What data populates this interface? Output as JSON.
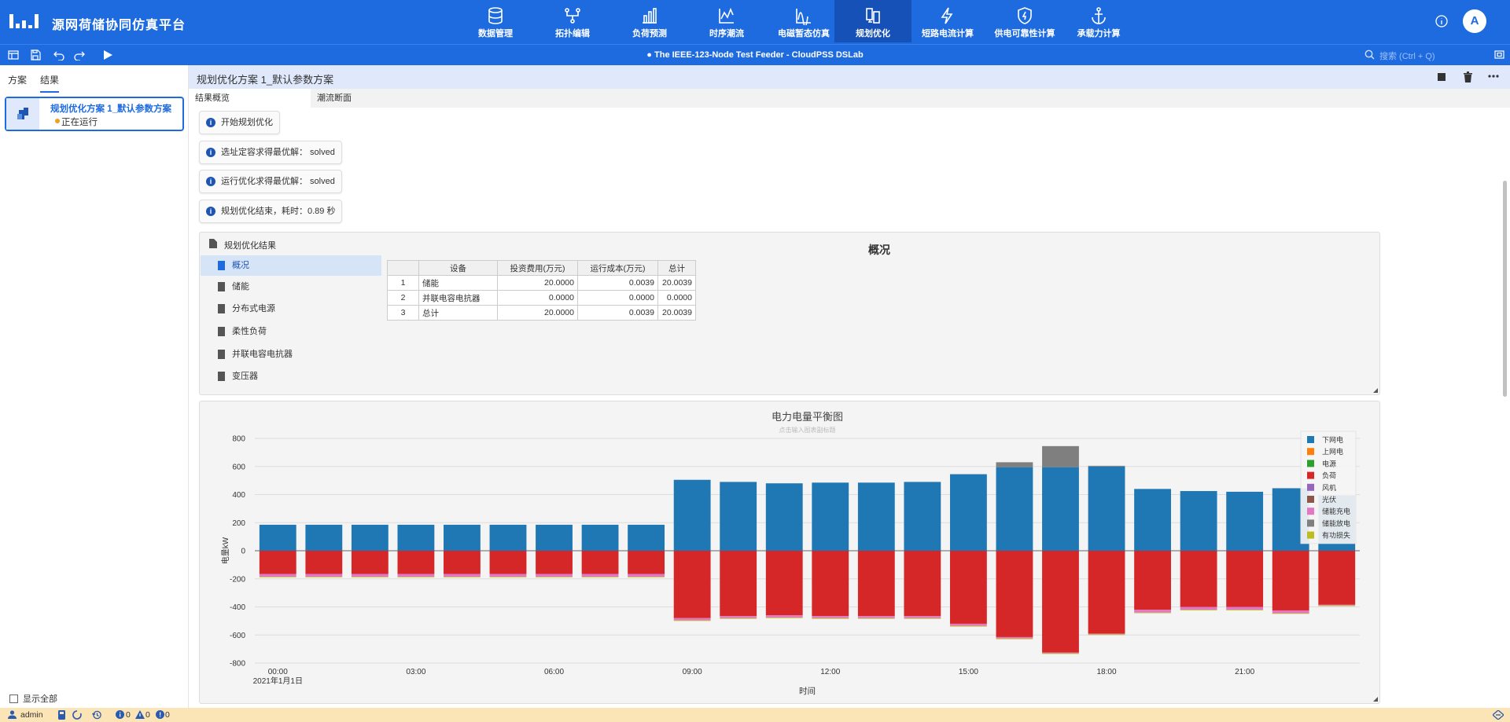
{
  "app": {
    "title": "源网荷储协同仿真平台",
    "avatar": "A"
  },
  "nav": [
    {
      "label": "数据管理",
      "icon": "database-icon"
    },
    {
      "label": "拓扑编辑",
      "icon": "topology-icon"
    },
    {
      "label": "负荷预测",
      "icon": "bar-chart-icon"
    },
    {
      "label": "时序潮流",
      "icon": "line-chart-icon"
    },
    {
      "label": "电磁暂态仿真",
      "icon": "waveform-icon"
    },
    {
      "label": "规划优化",
      "icon": "planning-icon",
      "active": true
    },
    {
      "label": "短路电流计算",
      "icon": "lightning-icon"
    },
    {
      "label": "供电可靠性计算",
      "icon": "shield-icon"
    },
    {
      "label": "承载力计算",
      "icon": "anchor-icon"
    }
  ],
  "toolbar": {
    "doc_title": "The IEEE-123-Node Test Feeder - CloudPSS DSLab",
    "search_placeholder": "搜索 (Ctrl + Q)"
  },
  "left": {
    "tabs": [
      "方案",
      "结果"
    ],
    "plan": {
      "name": "规划优化方案 1_默认参数方案",
      "status": "正在运行"
    },
    "show_all": "显示全部"
  },
  "main": {
    "title": "规划优化方案 1_默认参数方案",
    "tabs": [
      "结果概览",
      "潮流断面"
    ],
    "messages": [
      "开始规划优化",
      "选址定容求得最优解：  solved",
      "运行优化求得最优解：  solved",
      "规划优化结束，耗时：0.89 秒"
    ],
    "result_title": "规划优化结果",
    "result_items": [
      "概况",
      "储能",
      "分布式电源",
      "柔性负荷",
      "并联电容电抗器",
      "变压器"
    ],
    "overview_title": "概况",
    "table": {
      "headers": [
        "",
        "设备",
        "投资费用(万元)",
        "运行成本(万元)",
        "总计"
      ],
      "rows": [
        [
          "1",
          "储能",
          "20.0000",
          "0.0039",
          "20.0039"
        ],
        [
          "2",
          "并联电容电抗器",
          "0.0000",
          "0.0000",
          "0.0000"
        ],
        [
          "3",
          "总计",
          "20.0000",
          "0.0039",
          "20.0039"
        ]
      ]
    }
  },
  "status": {
    "user": "admin",
    "info": "0",
    "warn": "0",
    "err": "0"
  },
  "chart_data": {
    "type": "bar",
    "title": "电力电量平衡图",
    "subtitle": "点击输入图表副标题",
    "xlabel": "时间",
    "ylabel": "电量kW",
    "ylim": [
      -800,
      800
    ],
    "yticks": [
      800,
      600,
      400,
      200,
      0,
      -200,
      -400,
      -600,
      -800
    ],
    "xtick_labels": [
      "00:00",
      "03:00",
      "06:00",
      "09:00",
      "12:00",
      "15:00",
      "18:00",
      "21:00"
    ],
    "xtick_sublabel": "2021年1月1日",
    "grid": true,
    "legend_position": "top-right",
    "x": [
      "00:00",
      "01:00",
      "02:00",
      "03:00",
      "04:00",
      "05:00",
      "06:00",
      "07:00",
      "08:00",
      "09:00",
      "10:00",
      "11:00",
      "12:00",
      "13:00",
      "14:00",
      "15:00",
      "16:00",
      "17:00",
      "18:00",
      "19:00",
      "20:00",
      "21:00",
      "22:00",
      "23:00"
    ],
    "series": [
      {
        "name": "下网电",
        "color": "#1f77b4",
        "values": [
          185,
          185,
          185,
          185,
          185,
          185,
          185,
          185,
          185,
          505,
          490,
          480,
          485,
          485,
          490,
          545,
          595,
          595,
          600,
          440,
          425,
          420,
          445,
          395
        ]
      },
      {
        "name": "上网电",
        "color": "#ff7f0e",
        "values": [
          0,
          0,
          0,
          0,
          0,
          0,
          0,
          0,
          0,
          0,
          0,
          0,
          0,
          0,
          0,
          0,
          0,
          0,
          0,
          0,
          0,
          0,
          0,
          0
        ]
      },
      {
        "name": "电源",
        "color": "#2ca02c",
        "values": [
          0,
          0,
          0,
          0,
          0,
          0,
          0,
          0,
          0,
          0,
          0,
          0,
          0,
          0,
          0,
          0,
          0,
          0,
          0,
          0,
          0,
          0,
          0,
          0
        ]
      },
      {
        "name": "负荷",
        "color": "#d62728",
        "values": [
          -165,
          -165,
          -165,
          -165,
          -165,
          -165,
          -165,
          -165,
          -165,
          -480,
          -465,
          -460,
          -465,
          -465,
          -465,
          -520,
          -615,
          -725,
          -590,
          -420,
          -400,
          -400,
          -425,
          -385
        ]
      },
      {
        "name": "风机",
        "color": "#9467bd",
        "values": [
          0,
          0,
          0,
          0,
          0,
          0,
          0,
          0,
          0,
          0,
          0,
          0,
          0,
          0,
          0,
          0,
          0,
          0,
          0,
          0,
          0,
          0,
          0,
          0
        ]
      },
      {
        "name": "光伏",
        "color": "#8c564b",
        "values": [
          0,
          0,
          0,
          0,
          0,
          0,
          0,
          0,
          0,
          0,
          0,
          0,
          0,
          0,
          0,
          0,
          0,
          0,
          0,
          0,
          0,
          0,
          0,
          0
        ]
      },
      {
        "name": "储能充电",
        "color": "#e377c2",
        "values": [
          -20,
          -20,
          -20,
          -20,
          -20,
          -20,
          -20,
          -20,
          -20,
          -15,
          -15,
          -15,
          -15,
          -15,
          -15,
          -15,
          -10,
          -5,
          -5,
          -20,
          -20,
          -20,
          -20,
          -5
        ]
      },
      {
        "name": "储能放电",
        "color": "#7f7f7f",
        "values": [
          0,
          0,
          0,
          0,
          0,
          0,
          0,
          0,
          0,
          0,
          0,
          0,
          0,
          0,
          0,
          0,
          35,
          150,
          5,
          0,
          0,
          0,
          0,
          0
        ]
      },
      {
        "name": "有功损失",
        "color": "#bcbd22",
        "values": [
          -2,
          -2,
          -2,
          -2,
          -2,
          -2,
          -2,
          -2,
          -2,
          -5,
          -5,
          -5,
          -5,
          -5,
          -5,
          -5,
          -5,
          -5,
          -5,
          -3,
          -3,
          -3,
          -3,
          -3
        ]
      }
    ]
  }
}
